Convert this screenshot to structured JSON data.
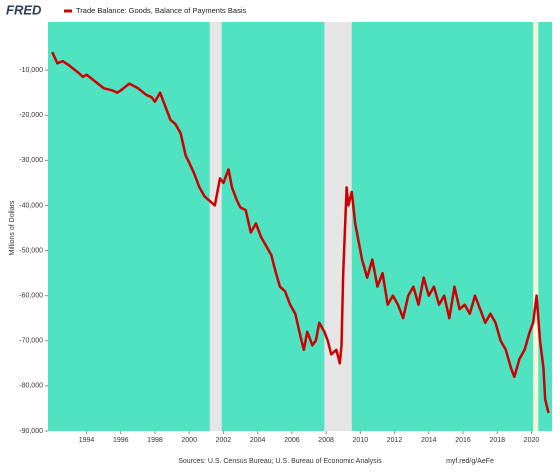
{
  "chart_data": {
    "type": "line",
    "logo": "FRED",
    "ylabel": "Millions of Dollars",
    "source": "Sources: U.S. Census Bureau; U.S. Bureau of Economic Analysis",
    "link": "myf.red/g/AeFe",
    "background": "#50e3c2",
    "recessions": [
      {
        "start": 2001.2,
        "end": 2001.9,
        "color": "#e6e6e6"
      },
      {
        "start": 2007.9,
        "end": 2009.5,
        "color": "#e6e6e6"
      },
      {
        "start": 2020.1,
        "end": 2020.4,
        "color": "#f4f6d8"
      }
    ],
    "xlim": [
      1991.75,
      2021.2
    ],
    "xticks": [
      1994,
      1996,
      1998,
      2000,
      2002,
      2004,
      2006,
      2008,
      2010,
      2012,
      2014,
      2016,
      2018,
      2020
    ],
    "ylim": [
      -90000,
      0
    ],
    "yticks": [
      {
        "value": -90000,
        "label": "-90,000"
      },
      {
        "value": -80000,
        "label": "-80,000"
      },
      {
        "value": -70000,
        "label": "-70,000"
      },
      {
        "value": -60000,
        "label": "-60,000"
      },
      {
        "value": -50000,
        "label": "-50,000"
      },
      {
        "value": -40000,
        "label": "-40,000"
      },
      {
        "value": -30000,
        "label": "-30,000"
      },
      {
        "value": -20000,
        "label": "-20,000"
      },
      {
        "value": -10000,
        "label": "-10,000"
      }
    ],
    "series": [
      {
        "name": "Trade Balance: Goods, Balance of Payments Basis",
        "color": "#cc0000",
        "x": [
          1992.0,
          1992.3,
          1992.6,
          1993.0,
          1993.5,
          1993.8,
          1994.0,
          1994.5,
          1995.0,
          1995.5,
          1995.8,
          1996.0,
          1996.5,
          1997.0,
          1997.5,
          1997.8,
          1998.0,
          1998.3,
          1998.6,
          1998.9,
          1999.2,
          1999.5,
          1999.8,
          2000.0,
          2000.3,
          2000.6,
          2000.9,
          2001.2,
          2001.5,
          2001.8,
          2002.0,
          2002.3,
          2002.5,
          2002.8,
          2003.0,
          2003.3,
          2003.6,
          2003.9,
          2004.2,
          2004.5,
          2004.8,
          2005.0,
          2005.3,
          2005.6,
          2005.9,
          2006.2,
          2006.5,
          2006.7,
          2006.9,
          2007.2,
          2007.4,
          2007.6,
          2007.9,
          2008.1,
          2008.3,
          2008.6,
          2008.8,
          2008.9,
          2009.0,
          2009.2,
          2009.3,
          2009.5,
          2009.7,
          2009.9,
          2010.1,
          2010.4,
          2010.7,
          2011.0,
          2011.3,
          2011.6,
          2011.9,
          2012.2,
          2012.5,
          2012.8,
          2013.1,
          2013.4,
          2013.7,
          2014.0,
          2014.3,
          2014.6,
          2014.9,
          2015.2,
          2015.5,
          2015.8,
          2016.1,
          2016.4,
          2016.7,
          2017.0,
          2017.3,
          2017.6,
          2017.9,
          2018.2,
          2018.5,
          2018.8,
          2019.0,
          2019.3,
          2019.6,
          2019.9,
          2020.1,
          2020.3,
          2020.5,
          2020.7,
          2020.8,
          2021.0
        ],
        "values": [
          -6000,
          -8500,
          -8000,
          -9000,
          -10500,
          -11500,
          -11000,
          -12500,
          -14000,
          -14500,
          -15000,
          -14500,
          -13000,
          -14000,
          -15500,
          -16000,
          -17000,
          -15000,
          -18000,
          -21000,
          -22000,
          -24000,
          -29000,
          -30500,
          -33000,
          -36000,
          -38000,
          -39000,
          -40000,
          -34000,
          -35000,
          -32000,
          -36000,
          -39000,
          -40500,
          -41000,
          -46000,
          -44000,
          -47000,
          -49000,
          -51000,
          -54000,
          -58000,
          -59000,
          -62000,
          -64000,
          -69000,
          -72000,
          -68000,
          -71000,
          -70000,
          -66000,
          -68000,
          -70000,
          -73000,
          -72000,
          -75000,
          -71000,
          -55000,
          -36000,
          -40000,
          -37000,
          -44000,
          -48000,
          -52000,
          -56000,
          -52000,
          -58000,
          -55000,
          -62000,
          -60000,
          -62000,
          -65000,
          -60000,
          -58000,
          -62000,
          -56000,
          -60000,
          -58000,
          -62000,
          -60000,
          -65000,
          -58000,
          -63000,
          -62000,
          -64000,
          -60000,
          -63000,
          -66000,
          -64000,
          -66000,
          -70000,
          -72000,
          -76000,
          -78000,
          -74000,
          -72000,
          -68000,
          -66000,
          -60000,
          -70000,
          -76000,
          -83000,
          -86000
        ]
      }
    ]
  }
}
